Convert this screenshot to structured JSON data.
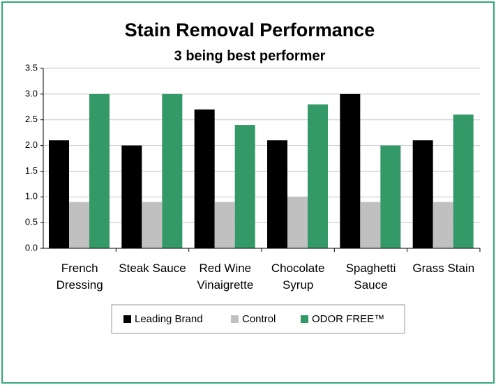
{
  "chart_data": {
    "type": "bar",
    "title": "Stain Removal Performance",
    "subtitle": "3 being best performer",
    "categories": [
      "French Dressing",
      "Steak Sauce",
      "Red Wine Vinaigrette",
      "Chocolate Syrup",
      "Spaghetti Sauce",
      "Grass Stain"
    ],
    "series": [
      {
        "name": "Leading Brand",
        "color": "#000000",
        "values": [
          2.1,
          2.0,
          2.7,
          2.1,
          3.0,
          2.1
        ]
      },
      {
        "name": "Control",
        "color": "#c0c0c0",
        "values": [
          0.9,
          0.9,
          0.9,
          1.0,
          0.9,
          0.9
        ]
      },
      {
        "name": "ODOR FREE™",
        "color": "#339966",
        "values": [
          3.0,
          3.0,
          2.4,
          2.8,
          2.0,
          2.6
        ]
      }
    ],
    "ylim": [
      0,
      3.5
    ],
    "yticks": [
      {
        "value": 0,
        "label": "0.0"
      },
      0.5,
      {
        "value": 1,
        "label": "1.0"
      },
      1.5,
      {
        "value": 2,
        "label": "2.0"
      },
      2.5,
      {
        "value": 3,
        "label": "3.0"
      },
      3.5
    ],
    "grid": true
  }
}
